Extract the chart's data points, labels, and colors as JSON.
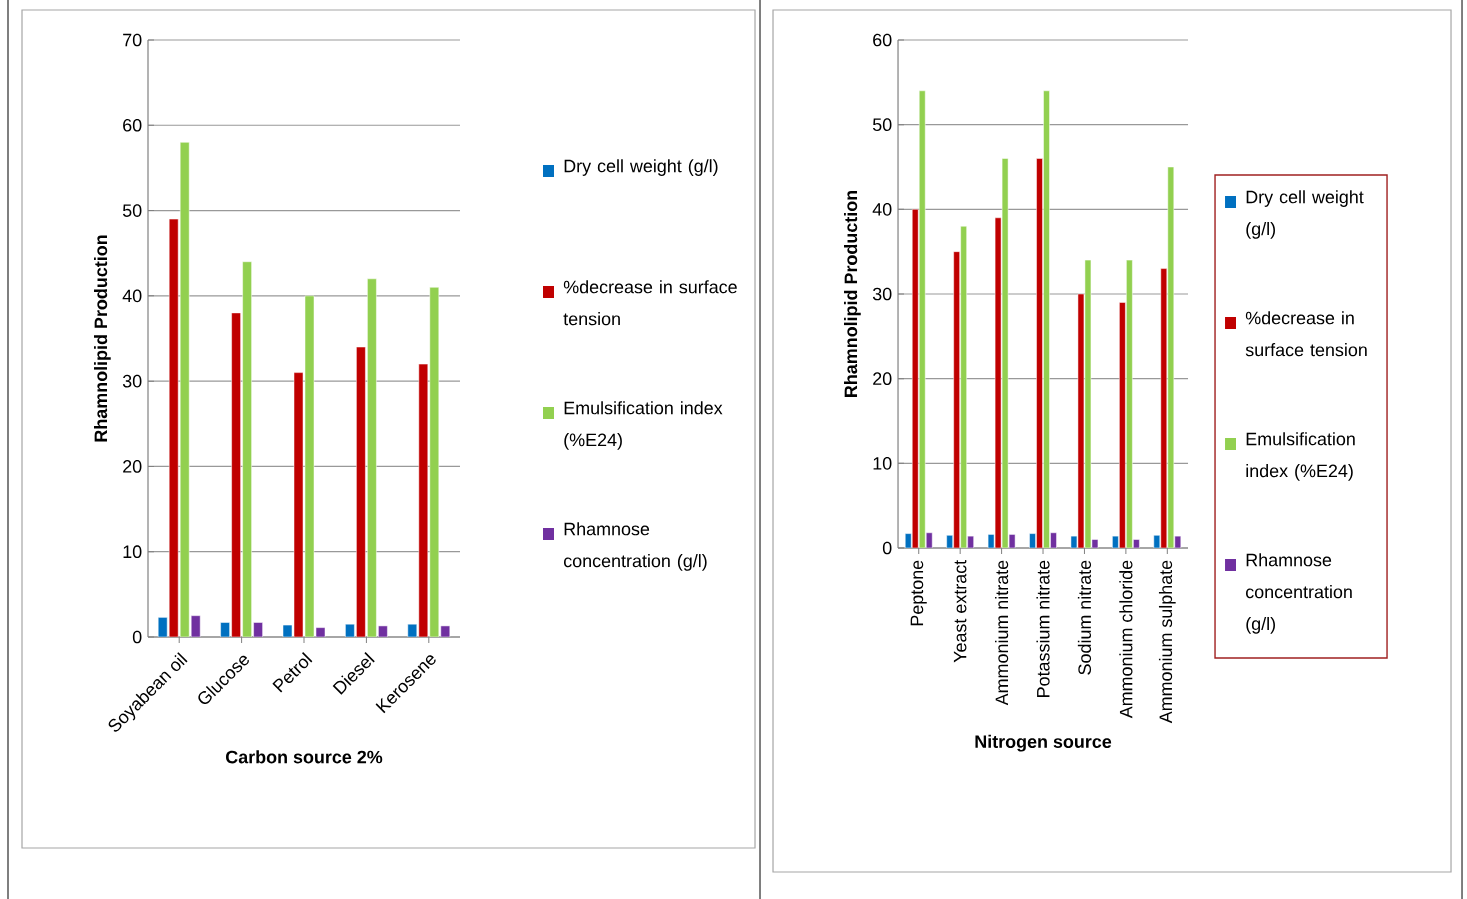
{
  "chart_data": [
    {
      "type": "bar",
      "xlabel": "Carbon source 2%",
      "ylabel": "Rhamnolipid Production",
      "categories": [
        "Soyabean oil",
        "Glucose",
        "Petrol",
        "Diesel",
        "Kerosene"
      ],
      "ylim": [
        0,
        70
      ],
      "yticks": [
        0,
        10,
        20,
        30,
        40,
        50,
        60,
        70
      ],
      "grid": "y",
      "legend": "right",
      "series": [
        {
          "name": "Dry cell weight (g/l)",
          "color": "#0070c0",
          "values": [
            2.3,
            1.7,
            1.4,
            1.5,
            1.5
          ]
        },
        {
          "name": "%decrease in surface tension",
          "color": "#c00000",
          "values": [
            49,
            38,
            31,
            34,
            32
          ]
        },
        {
          "name": "Emulsification index (%E24)",
          "color": "#92d050",
          "values": [
            58,
            44,
            40,
            42,
            41
          ]
        },
        {
          "name": "Rhamnose concentration (g/l)",
          "color": "#7030a0",
          "values": [
            2.5,
            1.7,
            1.1,
            1.3,
            1.3
          ]
        }
      ]
    },
    {
      "type": "bar",
      "xlabel": "Nitrogen source",
      "ylabel": "Rhamnolipid Production",
      "categories": [
        "Peptone",
        "Yeast extract",
        "Ammonium nitrate",
        "Potassium nitrate",
        "Sodium nitrate",
        "Ammonium chloride",
        "Ammonium sulphate"
      ],
      "ylim": [
        0,
        60
      ],
      "yticks": [
        0,
        10,
        20,
        30,
        40,
        50,
        60
      ],
      "grid": "y",
      "legend": "right",
      "series": [
        {
          "name": "Dry cell weight (g/l)",
          "color": "#0070c0",
          "values": [
            1.7,
            1.5,
            1.6,
            1.7,
            1.4,
            1.4,
            1.5
          ]
        },
        {
          "name": "%decrease in surface tension",
          "color": "#c00000",
          "values": [
            40,
            35,
            39,
            46,
            30,
            29,
            33
          ]
        },
        {
          "name": "Emulsification index (%E24)",
          "color": "#92d050",
          "values": [
            54,
            38,
            46,
            54,
            34,
            34,
            45
          ]
        },
        {
          "name": "Rhamnose concentration (g/l)",
          "color": "#7030a0",
          "values": [
            1.8,
            1.4,
            1.6,
            1.8,
            1.0,
            1.0,
            1.4
          ]
        }
      ]
    }
  ]
}
